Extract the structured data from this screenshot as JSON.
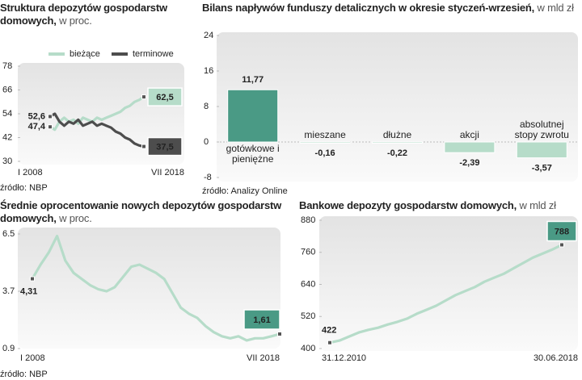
{
  "chart_data": [
    {
      "type": "line",
      "title": "Struktura depozytów gospodarstw domowych,",
      "subtitle": "w proc.",
      "source": "źródło: NBP",
      "categories": [
        "I 2008",
        null,
        null,
        null,
        null,
        null,
        null,
        null,
        null,
        null,
        null,
        null,
        null,
        null,
        null,
        null,
        null,
        null,
        null,
        null,
        "VII 2018"
      ],
      "series": [
        {
          "name": "bieżące",
          "color": "#b6dcc9",
          "values": [
            47.4,
            46,
            50,
            52,
            50,
            51,
            49,
            52,
            51,
            50,
            52,
            51,
            52,
            53,
            54,
            55,
            57,
            58,
            60,
            61,
            62.5
          ],
          "value_labels": [
            "47,4",
            null,
            null,
            null,
            null,
            null,
            null,
            null,
            null,
            null,
            null,
            null,
            null,
            null,
            null,
            null,
            null,
            null,
            null,
            null,
            "62,5"
          ]
        },
        {
          "name": "terminowe",
          "color": "#4d4d4d",
          "values": [
            52.6,
            54,
            50,
            48,
            50,
            49,
            51,
            48,
            49,
            50,
            48,
            49,
            48,
            47,
            45,
            44,
            42,
            41,
            39,
            38,
            37.5
          ],
          "value_labels": [
            "52,6",
            null,
            null,
            null,
            null,
            null,
            null,
            null,
            null,
            null,
            null,
            null,
            null,
            null,
            null,
            null,
            null,
            null,
            null,
            null,
            "37,5"
          ]
        }
      ],
      "ylim": [
        30,
        78
      ],
      "yticks": [
        30,
        42,
        54,
        66,
        78
      ]
    },
    {
      "type": "bar",
      "title": "Bilans napływów funduszy detalicznych w okresie styczeń-wrzesień,",
      "subtitle": "w mld zł",
      "source": "źródło: Analizy Online",
      "categories": [
        "gotówkowe i pieniężne",
        "mieszane",
        "dłużne",
        "akcji",
        "absolutnej stopy zwrotu"
      ],
      "values": [
        11.77,
        -0.16,
        -0.22,
        -2.39,
        -3.57
      ],
      "value_labels": [
        "11,77",
        "-0,16",
        "-0,22",
        "-2,39",
        "-3,57"
      ],
      "colors": [
        "#4a9a85",
        "#b6dcc9",
        "#b6dcc9",
        "#b6dcc9",
        "#b6dcc9"
      ],
      "ylim": [
        -8,
        24
      ],
      "yticks": [
        -8,
        0,
        8,
        16,
        24
      ]
    },
    {
      "type": "line",
      "title": "Średnie oprocentowanie nowych depozytów gospodarstw domowych,",
      "subtitle": "w proc.",
      "source": "źródło: NBP",
      "categories": [
        "I 2008",
        null,
        null,
        null,
        null,
        null,
        null,
        null,
        null,
        null,
        null,
        null,
        null,
        null,
        null,
        null,
        null,
        null,
        null,
        null,
        null,
        null,
        null,
        null,
        null,
        null,
        null,
        null,
        null,
        null,
        "VII 2018"
      ],
      "series": [
        {
          "color": "#b6dcc9",
          "values": [
            4.31,
            5.0,
            5.6,
            6.4,
            5.2,
            4.6,
            4.3,
            4.0,
            3.8,
            3.7,
            3.9,
            4.4,
            4.9,
            5.0,
            4.8,
            4.6,
            4.3,
            3.6,
            2.9,
            2.6,
            2.4,
            2.0,
            1.7,
            1.5,
            1.4,
            1.5,
            1.3,
            1.4,
            1.4,
            1.5,
            1.61
          ],
          "value_labels": [
            "4,31",
            null,
            null,
            null,
            null,
            null,
            null,
            null,
            null,
            null,
            null,
            null,
            null,
            null,
            null,
            null,
            null,
            null,
            null,
            null,
            null,
            null,
            null,
            null,
            null,
            null,
            null,
            null,
            null,
            null,
            "1,61"
          ]
        }
      ],
      "label_color": "#4a9a85",
      "ylim": [
        0.9,
        6.5
      ],
      "yticks": [
        0.9,
        3.7,
        6.5
      ]
    },
    {
      "type": "line",
      "title": "Bankowe depozyty gospodarstw domowych,",
      "subtitle": "w mld zł",
      "categories": [
        "31.12.2010",
        null,
        null,
        null,
        null,
        null,
        null,
        null,
        null,
        null,
        null,
        null,
        null,
        null,
        null,
        null,
        null,
        null,
        null,
        null,
        null,
        null,
        null,
        null,
        "30.06.2018"
      ],
      "series": [
        {
          "color": "#b6dcc9",
          "values": [
            422,
            430,
            445,
            460,
            470,
            478,
            490,
            500,
            512,
            530,
            545,
            560,
            580,
            600,
            615,
            630,
            650,
            665,
            680,
            700,
            720,
            740,
            755,
            770,
            788
          ],
          "value_labels": [
            "422",
            null,
            null,
            null,
            null,
            null,
            null,
            null,
            null,
            null,
            null,
            null,
            null,
            null,
            null,
            null,
            null,
            null,
            null,
            null,
            null,
            null,
            null,
            null,
            "788"
          ]
        }
      ],
      "label_color": "#4a9a85",
      "ylim": [
        400,
        880
      ],
      "yticks": [
        400,
        520,
        640,
        760,
        880
      ]
    }
  ]
}
